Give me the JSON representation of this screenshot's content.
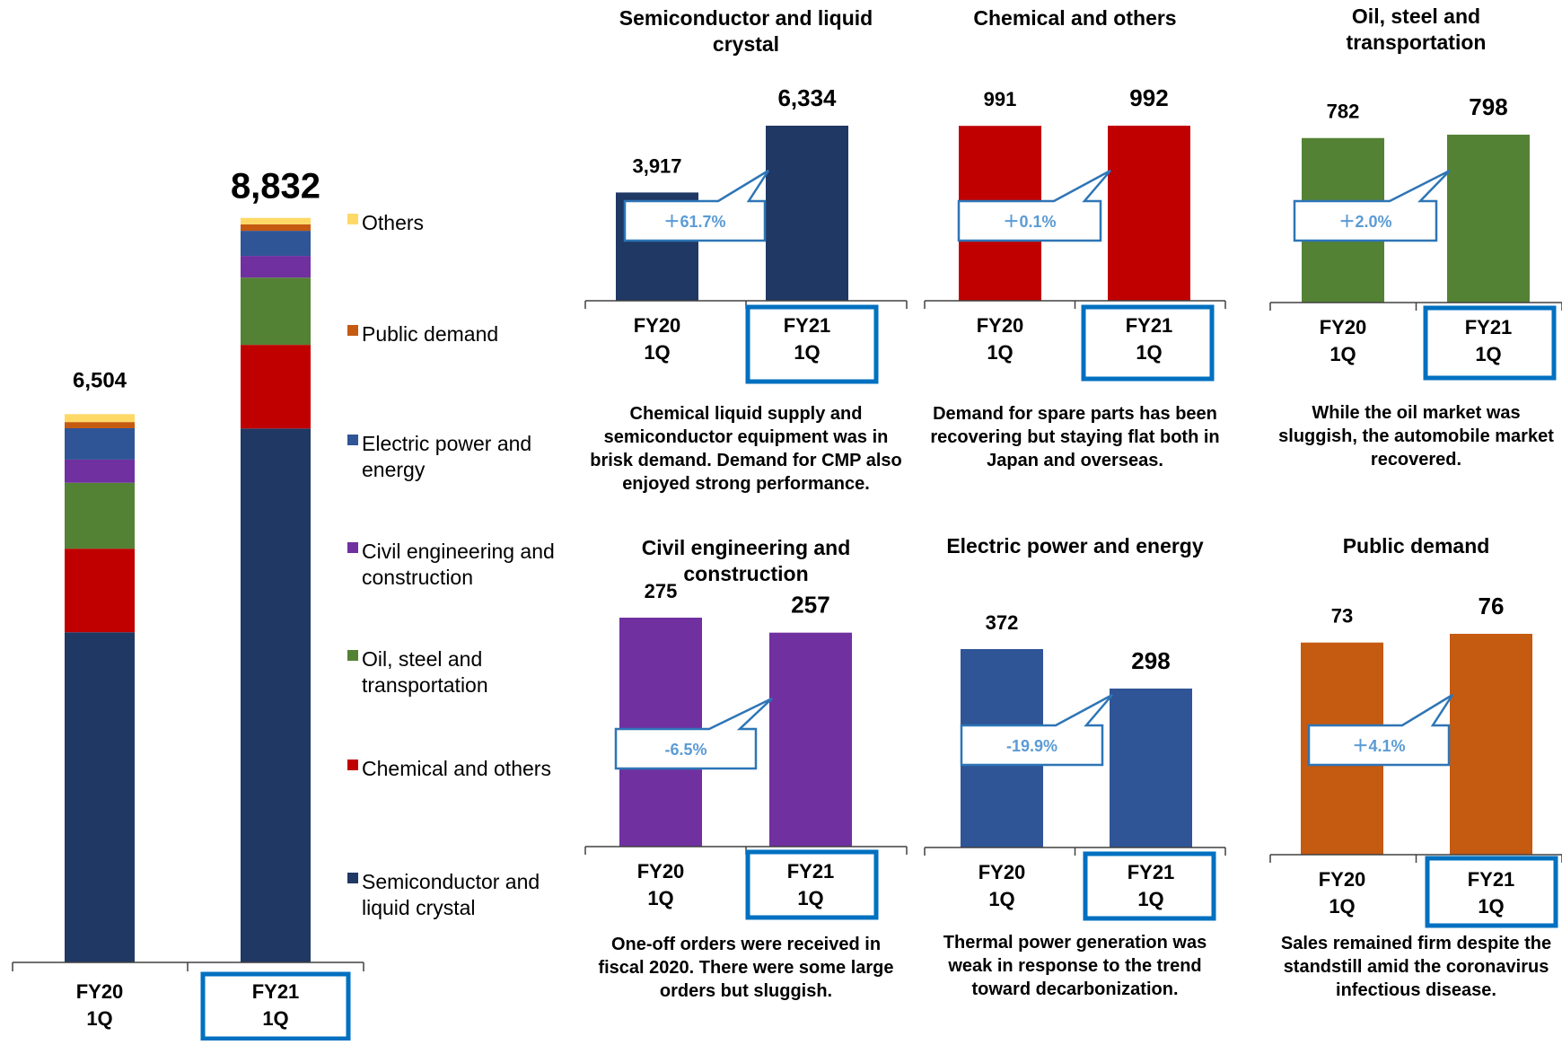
{
  "main_chart": {
    "categories": [
      "FY20\n1Q",
      "FY21\n1Q"
    ],
    "totals": [
      "6,504",
      "8,832"
    ],
    "legend": [
      {
        "key": "others",
        "label": "Others"
      },
      {
        "key": "public",
        "label": "Public demand"
      },
      {
        "key": "electric",
        "label": "Electric power and energy"
      },
      {
        "key": "civil",
        "label": "Civil engineering and construction"
      },
      {
        "key": "oil",
        "label": "Oil, steel and transportation"
      },
      {
        "key": "chemical",
        "label": "Chemical and others"
      },
      {
        "key": "semi",
        "label": "Semiconductor and liquid crystal"
      }
    ]
  },
  "chart_data": [
    {
      "type": "bar",
      "stacked": true,
      "categories": [
        "FY20 1Q",
        "FY21 1Q"
      ],
      "series": [
        {
          "name": "Semiconductor and liquid crystal",
          "values": [
            3917,
            6334
          ],
          "color": "#203864"
        },
        {
          "name": "Chemical and others",
          "values": [
            991,
            992
          ],
          "color": "#c00000"
        },
        {
          "name": "Oil, steel and transportation",
          "values": [
            782,
            798
          ],
          "color": "#548235"
        },
        {
          "name": "Civil engineering and construction",
          "values": [
            275,
            257
          ],
          "color": "#7030a0"
        },
        {
          "name": "Electric power and energy",
          "values": [
            372,
            298
          ],
          "color": "#2f5597"
        },
        {
          "name": "Public demand",
          "values": [
            73,
            76
          ],
          "color": "#c55a11"
        },
        {
          "name": "Others",
          "values": [
            94,
            77
          ],
          "color": "#ffd966"
        }
      ],
      "totals": [
        6504,
        8832
      ],
      "ylim": [
        0,
        9500
      ]
    },
    {
      "type": "bar",
      "title": "Semiconductor and liquid crystal",
      "categories": [
        "FY20 1Q",
        "FY21 1Q"
      ],
      "values": [
        3917,
        6334
      ],
      "labels": [
        "3,917",
        "6,334"
      ],
      "change": "＋61.7%",
      "color": "#203864",
      "ylim": [
        0,
        7000
      ]
    },
    {
      "type": "bar",
      "title": "Chemical and others",
      "categories": [
        "FY20 1Q",
        "FY21 1Q"
      ],
      "values": [
        991,
        992
      ],
      "labels": [
        "991",
        "992"
      ],
      "change": "＋0.1%",
      "color": "#c00000",
      "ylim": [
        0,
        1100
      ]
    },
    {
      "type": "bar",
      "title": "Oil, steel and transportation",
      "categories": [
        "FY20 1Q",
        "FY21 1Q"
      ],
      "values": [
        782,
        798
      ],
      "labels": [
        "782",
        "798"
      ],
      "change": "＋2.0%",
      "color": "#548235",
      "ylim": [
        0,
        850
      ]
    },
    {
      "type": "bar",
      "title": "Civil engineering and construction",
      "categories": [
        "FY20 1Q",
        "FY21 1Q"
      ],
      "values": [
        275,
        257
      ],
      "labels": [
        "275",
        "257"
      ],
      "change": "-6.5%",
      "color": "#7030a0",
      "ylim": [
        0,
        300
      ]
    },
    {
      "type": "bar",
      "title": "Electric power and energy",
      "categories": [
        "FY20 1Q",
        "FY21 1Q"
      ],
      "values": [
        372,
        298
      ],
      "labels": [
        "372",
        "298"
      ],
      "change": "-19.9%",
      "color": "#2f5597",
      "ylim": [
        0,
        420
      ]
    },
    {
      "type": "bar",
      "title": "Public demand",
      "categories": [
        "FY20 1Q",
        "FY21 1Q"
      ],
      "values": [
        73,
        76
      ],
      "labels": [
        "73",
        "76"
      ],
      "change": "＋4.1%",
      "color": "#c55a11",
      "ylim": [
        0,
        85
      ]
    }
  ],
  "panels": [
    {
      "title": "Semiconductor and liquid crystal",
      "caption": "Chemical liquid supply and semiconductor equipment was in brisk demand. Demand for CMP also enjoyed strong performance."
    },
    {
      "title": "Chemical and others",
      "caption": "Demand for spare parts has been recovering but staying flat both in Japan and overseas."
    },
    {
      "title": "Oil, steel and transportation",
      "caption": "While the oil market was sluggish, the automobile market recovered."
    },
    {
      "title": "Civil engineering and construction",
      "caption": "One-off orders were received in fiscal 2020. There were some large orders but sluggish."
    },
    {
      "title": "Electric power and energy",
      "caption": "Thermal power generation was weak in response to the trend toward decarbonization."
    },
    {
      "title": "Public demand",
      "caption": "Sales remained firm despite the standstill amid the coronavirus infectious disease."
    }
  ],
  "colors": {
    "callout_border": "#2e75b6",
    "callout_text": "#5b9bd5",
    "highlight_box": "#0070c0"
  }
}
